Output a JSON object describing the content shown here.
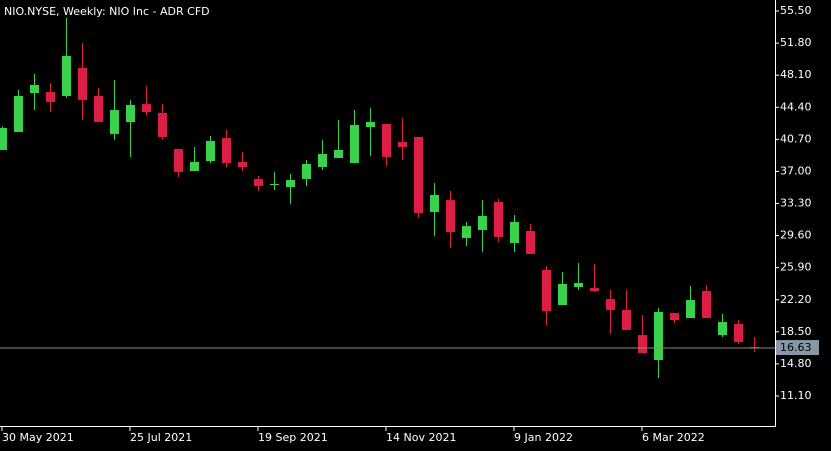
{
  "chart_data": {
    "type": "candlestick",
    "title": "NIO.NYSE, Weekly:  NIO Inc - ADR CFD",
    "categories": [
      "30 May 2021",
      null,
      null,
      null,
      null,
      null,
      null,
      null,
      "25 Jul 2021",
      null,
      null,
      null,
      null,
      null,
      null,
      null,
      "19 Sep 2021",
      null,
      null,
      null,
      null,
      null,
      null,
      null,
      "14 Nov 2021",
      null,
      null,
      null,
      null,
      null,
      null,
      null,
      "9 Jan 2022",
      null,
      null,
      null,
      null,
      null,
      null,
      null,
      "6 Mar 2022",
      null,
      null,
      null,
      null,
      null,
      null,
      null
    ],
    "open": [
      39.47,
      41.55,
      46.04,
      46.16,
      45.7,
      48.93,
      45.7,
      41.31,
      42.7,
      44.77,
      43.74,
      39.58,
      37.05,
      38.2,
      40.85,
      38.09,
      36.13,
      35.43,
      35.2,
      36.13,
      37.51,
      38.55,
      37.97,
      42.12,
      42.47,
      40.39,
      40.97,
      32.32,
      33.7,
      29.32,
      30.24,
      33.47,
      28.74,
      30.13,
      25.63,
      21.59,
      23.67,
      23.55,
      22.29,
      21.02,
      18.13,
      15.25,
      20.67,
      20.09,
      23.21,
      18.13,
      19.4,
      16.75
    ],
    "high": [
      42.2,
      46.39,
      48.23,
      47.2,
      54.69,
      51.81,
      46.62,
      47.54,
      45.24,
      46.85,
      44.77,
      39.58,
      39.82,
      41.08,
      41.78,
      39.24,
      36.47,
      36.93,
      36.7,
      38.32,
      40.62,
      42.93,
      44.08,
      44.31,
      42.47,
      43.16,
      40.97,
      35.66,
      34.74,
      31.17,
      33.7,
      33.82,
      31.97,
      30.94,
      26.09,
      25.4,
      26.44,
      26.32,
      23.32,
      23.32,
      20.44,
      21.25,
      20.67,
      23.8,
      23.9,
      20.56,
      19.86,
      17.9
    ],
    "low": [
      39.47,
      41.55,
      44.08,
      43.85,
      45.47,
      42.93,
      42.7,
      40.62,
      38.66,
      43.51,
      40.62,
      36.36,
      37.05,
      37.97,
      37.51,
      37.05,
      34.74,
      34.86,
      33.24,
      35.32,
      37.16,
      38.55,
      37.97,
      38.78,
      37.62,
      38.32,
      31.63,
      29.55,
      28.17,
      28.4,
      27.71,
      28.86,
      27.71,
      27.48,
      19.29,
      21.59,
      23.32,
      23.09,
      18.25,
      18.71,
      16.06,
      13.17,
      19.52,
      20.09,
      20.09,
      17.9,
      17.1,
      16.17
    ],
    "close": [
      42.01,
      45.7,
      46.97,
      45.01,
      50.31,
      45.24,
      42.7,
      44.08,
      44.66,
      43.85,
      40.97,
      36.93,
      38.09,
      40.51,
      37.97,
      37.51,
      35.32,
      35.55,
      36.01,
      37.86,
      39.01,
      39.47,
      42.35,
      42.7,
      38.66,
      39.82,
      32.2,
      34.28,
      30.01,
      30.7,
      31.86,
      29.44,
      31.17,
      27.48,
      20.9,
      24.02,
      24.13,
      23.21,
      21.02,
      18.71,
      16.06,
      20.79,
      19.86,
      22.17,
      20.09,
      19.63,
      17.32,
      16.63
    ],
    "up_color": "#3ad24a",
    "down_color": "#dc1e45",
    "last_price": 16.63,
    "ylim": [
      7.64,
      56.77
    ],
    "yticks": [
      {
        "value": 55.5,
        "label": "55.50"
      },
      {
        "value": 51.8,
        "label": "51.80"
      },
      {
        "value": 48.1,
        "label": "48.10"
      },
      {
        "value": 44.4,
        "label": "44.40"
      },
      {
        "value": 40.7,
        "label": "40.70"
      },
      {
        "value": 37,
        "label": "37.00"
      },
      {
        "value": 33.3,
        "label": "33.30"
      },
      {
        "value": 29.6,
        "label": "29.60"
      },
      {
        "value": 25.9,
        "label": "25.90"
      },
      {
        "value": 22.2,
        "label": "22.20"
      },
      {
        "value": 18.5,
        "label": "18.50"
      },
      {
        "value": 14.8,
        "label": "14.80"
      },
      {
        "value": 11.1,
        "label": "11.10"
      }
    ]
  }
}
